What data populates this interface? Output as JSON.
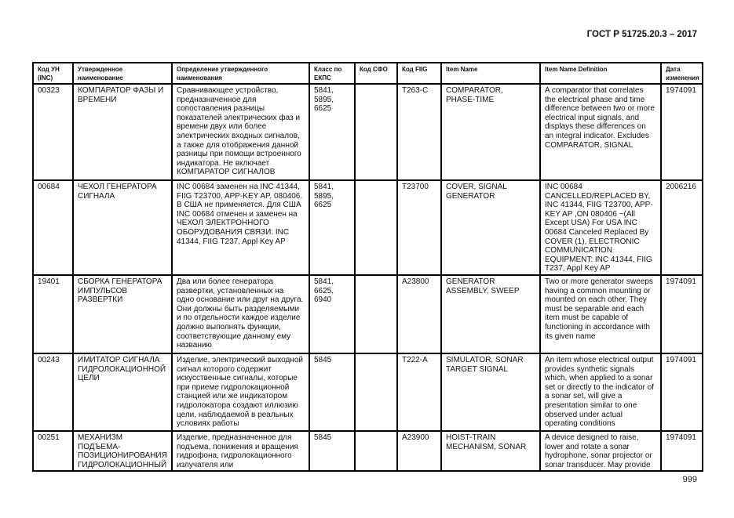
{
  "header": {
    "title": "ГОСТ Р 51725.20.3 – 2017"
  },
  "page_number": "999",
  "table": {
    "columns": [
      "Код УН\n(INC)",
      "Утвержденное\nнаименование",
      "Определение утвержденного\nнаименования",
      "Класс по\nЕКПС",
      "Код СФО",
      "Код FIIG",
      "Item Name",
      "Item Name Definition",
      "Дата\nизменения"
    ],
    "rows": [
      [
        "00323",
        "КОМПАРАТОР ФАЗЫ И\nВРЕМЕНИ",
        "Сравнивающее устройство,\nпредназначенное для\nсопоставления разницы\nпоказателей электрических фаз и\nвремени двух или более\nэлектрических входных сигналов,\nа также для отображения данной\nразницы при помощи встроенного\nиндикатора. Не включает\nКОМПАРАТОР СИГНАЛОВ",
        "5841,\n5895,\n6625",
        "",
        "T263-C",
        "COMPARATOR,\nPHASE-TIME",
        "A comparator that correlates\nthe electrical phase and time\ndifference between two or more\nelectrical input signals, and\ndisplays these differences on\nan integral indicator. Excludes\nCOMPARATOR, SIGNAL",
        "1974091"
      ],
      [
        "00684",
        "ЧЕХОЛ ГЕНЕРАТОРА\nСИГНАЛА",
        "INC 00684 заменен на INC 41344,\nFIIG T23700, APP-KEY AP, 080406.\nВ США не применяется. Для США\nINC 00684 отменен и заменен на\nЧЕХОЛ ЭЛЕКТРОННОГО\nОБОРУДОВАНИЯ СВЯЗИ: INC\n41344, FIIG T237, Appl Key AP",
        "5841,\n5895,\n6625",
        "",
        "T23700",
        "COVER, SIGNAL\nGENERATOR",
        "INC 00684\nCANCELLED/REPLACED BY,\nINC 41344, FIIG T23700, APP-\nKEY AP ,ON 080406 ~(All\nExcept USA) For USA INC\n00684 Canceled Replaced By\nCOVER (1), ELECTRONIC\nCOMMUNICATION\nEQUIPMENT: INC 41344, FIIG\nT237, Appl Key AP",
        "2006216"
      ],
      [
        "19401",
        "СБОРКА ГЕНЕРАТОРА\nИМПУЛЬСОВ\nРАЗВЕРТКИ",
        "Два или более генератора\nразвертки, установленных на\nодно основание или друг на друга.\nОни должны быть разделяемыми\nи по отдельности каждое изделие\nдолжно выполнять функции,\nсоответствующие данному ему\nназванию",
        "5841,\n6625,\n6940",
        "",
        "A23800",
        "GENERATOR\nASSEMBLY, SWEEP",
        "Two or more generator sweeps\nhaving a common mounting or\nmounted on each other. They\nmust be separable and each\nitem must be capable of\nfunctioning in accordance with\nits given name",
        "1974091"
      ],
      [
        "00243",
        "ИМИТАТОР СИГНАЛА\nГИДРОЛОКАЦИОННОЙ\nЦЕЛИ",
        "Изделие, электрический выходной\nсигнал которого содержит\nискусственные сигналы, которые\nпри приеме гидролокационной\nстанцией или же индикатором\nгидролокатора создают иллюзию\nцели, наблюдаемой в реальных\nусловиях работы",
        "5845",
        "",
        "T222-A",
        "SIMULATOR, SONAR\nTARGET SIGNAL",
        "An item whose electrical output\nprovides synthetic signals\nwhich, when applied to a sonar\nset or directly to the indicator of\na sonar set, will give a\npresentation similar to one\nobserved under actual\noperating conditions",
        "1974091"
      ],
      [
        "00251",
        "МЕХАНИЗМ ПОДЪЕМА-\nПОЗИЦИОНИРОВАНИЯ\nГИДРОЛОКАЦИОННЫЙ",
        "Изделие, предназначенное для\nподъема, понижения и вращения\nгидрофона, гидролокационного\nизлучателя или",
        "5845",
        "",
        "A23900",
        "HOIST-TRAIN\nMECHANISM, SONAR",
        "A device designed to raise,\nlower and rotate a sonar\nhydrophone, sonar projector or\nsonar transducer. May provide",
        "1974091"
      ]
    ]
  }
}
